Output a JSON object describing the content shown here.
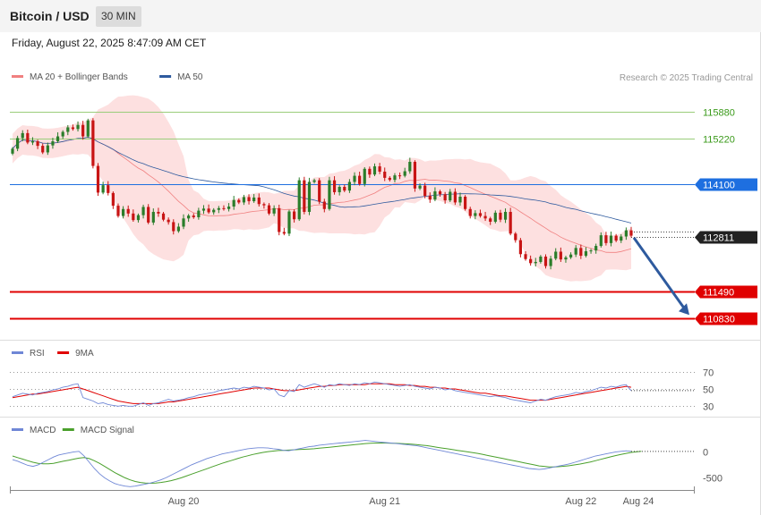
{
  "header": {
    "title": "Bitcoin / USD",
    "timeframe": "30 MIN"
  },
  "datetime": "Friday, August 22, 2025 8:47:09 AM CET",
  "copyright": "Research © 2025 Trading Central",
  "colors": {
    "bollinger": "#f08080",
    "bb_fill": "#fde0e0",
    "ma50": "#2e5a9e",
    "up": "#2a7d2a",
    "down": "#c81414",
    "resistance": "#9acd7a",
    "pivot": "#1e6fe0",
    "support": "#e00000",
    "rsi": "#6f87d6",
    "rsi_ma": "#e00000",
    "macd": "#6f87d6",
    "macd_signal": "#4aa02c",
    "arrow": "#2e5a9e"
  },
  "chart_data": [
    {
      "type": "candlestick",
      "title": "Bitcoin / USD",
      "legend": [
        {
          "name": "MA 20 + Bollinger Bands",
          "color": "#f08080"
        },
        {
          "name": "MA 50",
          "color": "#2e5a9e"
        }
      ],
      "x_ticks": [
        "Aug 20",
        "Aug 21",
        "Aug 22",
        "Aug 24"
      ],
      "ylim": [
        110400,
        117200
      ],
      "levels": [
        {
          "label": "115880",
          "value": 115880,
          "kind": "resistance"
        },
        {
          "label": "115220",
          "value": 115220,
          "kind": "resistance"
        },
        {
          "label": "114100",
          "value": 114100,
          "kind": "pivot"
        },
        {
          "label": "112811",
          "value": 112811,
          "kind": "last"
        },
        {
          "label": "111490",
          "value": 111490,
          "kind": "support"
        },
        {
          "label": "110830",
          "value": 110830,
          "kind": "support"
        }
      ],
      "forecast_arrow": {
        "from": 112800,
        "to": 110830
      },
      "closes": [
        114970,
        115230,
        115350,
        115120,
        115150,
        115040,
        114880,
        115050,
        115150,
        115270,
        115380,
        115490,
        115450,
        115550,
        115270,
        115660,
        114550,
        113900,
        114080,
        113890,
        113580,
        113330,
        113500,
        113390,
        113230,
        113350,
        113550,
        113170,
        113430,
        113390,
        113240,
        113180,
        112960,
        113070,
        113270,
        113340,
        113300,
        113460,
        113510,
        113420,
        113480,
        113520,
        113500,
        113560,
        113720,
        113660,
        113790,
        113690,
        113780,
        113620,
        113590,
        113390,
        113520,
        112940,
        112900,
        113440,
        113250,
        114200,
        113430,
        114160,
        114200,
        113680,
        113500,
        114200,
        113910,
        114040,
        113950,
        114160,
        114310,
        114110,
        114480,
        114340,
        114540,
        114410,
        114260,
        114210,
        114320,
        114310,
        114420,
        114650,
        114000,
        114070,
        113820,
        113730,
        113930,
        113860,
        113710,
        113920,
        113660,
        113800,
        113500,
        113330,
        113400,
        113330,
        113270,
        113190,
        113410,
        113240,
        113430,
        112900,
        112740,
        112400,
        112280,
        112180,
        112210,
        112340,
        112110,
        112290,
        112460,
        112270,
        112320,
        112390,
        112550,
        112360,
        112470,
        112490,
        112600,
        112860,
        112670,
        112850,
        112730,
        112830,
        112980,
        112850
      ]
    },
    {
      "type": "line",
      "legend": [
        {
          "name": "RSI",
          "color": "#6f87d6"
        },
        {
          "name": "9MA",
          "color": "#e00000"
        }
      ],
      "ylim": [
        20,
        80
      ],
      "y_ticks": [
        70,
        50,
        30
      ],
      "rsi": [
        41,
        43,
        45,
        44,
        43,
        45,
        46,
        47,
        49,
        50,
        52,
        53,
        55,
        56,
        40,
        38,
        36,
        33,
        34,
        32,
        31,
        30,
        31,
        30,
        30,
        32,
        34,
        31,
        33,
        34,
        36,
        38,
        36,
        37,
        38,
        40,
        41,
        43,
        44,
        45,
        46,
        48,
        49,
        50,
        51,
        50,
        52,
        51,
        53,
        52,
        51,
        49,
        50,
        43,
        41,
        48,
        47,
        55,
        52,
        54,
        56,
        54,
        52,
        55,
        54,
        56,
        55,
        54,
        56,
        55,
        57,
        56,
        58,
        57,
        56,
        55,
        54,
        53,
        54,
        55,
        53,
        52,
        51,
        50,
        52,
        51,
        49,
        50,
        48,
        47,
        46,
        45,
        44,
        43,
        42,
        41,
        42,
        41,
        40,
        38,
        37,
        36,
        35,
        34,
        36,
        38,
        37,
        39,
        41,
        42,
        43,
        44,
        46,
        45,
        47,
        48,
        50,
        52,
        51,
        53,
        52,
        54,
        55,
        48
      ],
      "rsi_ma": [
        40,
        41,
        42,
        43,
        44,
        44,
        45,
        46,
        47,
        48,
        49,
        50,
        51,
        52,
        50,
        48,
        46,
        44,
        42,
        40,
        38,
        36,
        35,
        34,
        33,
        33,
        33,
        33,
        33,
        33,
        34,
        35,
        35,
        36,
        37,
        38,
        39,
        40,
        41,
        42,
        43,
        44,
        45,
        46,
        47,
        48,
        49,
        50,
        51,
        51,
        51,
        51,
        50,
        49,
        48,
        48,
        48,
        49,
        50,
        51,
        52,
        53,
        53,
        54,
        54,
        55,
        55,
        55,
        55,
        55,
        55,
        56,
        56,
        56,
        56,
        56,
        55,
        55,
        55,
        54,
        54,
        53,
        53,
        52,
        52,
        51,
        51,
        50,
        50,
        49,
        48,
        47,
        46,
        45,
        45,
        44,
        43,
        42,
        42,
        41,
        40,
        39,
        38,
        37,
        37,
        37,
        37,
        38,
        39,
        40,
        41,
        42,
        43,
        44,
        45,
        46,
        47,
        48,
        49,
        50,
        51,
        52,
        53,
        52
      ]
    },
    {
      "type": "line",
      "legend": [
        {
          "name": "MACD",
          "color": "#6f87d6"
        },
        {
          "name": "MACD Signal",
          "color": "#4aa02c"
        }
      ],
      "ylim": [
        -700,
        300
      ],
      "y_ticks": [
        0,
        -500
      ],
      "macd": [
        -150,
        -180,
        -220,
        -260,
        -280,
        -250,
        -200,
        -150,
        -100,
        -60,
        -40,
        -20,
        0,
        10,
        -80,
        -200,
        -320,
        -420,
        -500,
        -560,
        -610,
        -640,
        -660,
        -670,
        -660,
        -640,
        -620,
        -600,
        -570,
        -540,
        -500,
        -450,
        -400,
        -350,
        -300,
        -250,
        -210,
        -170,
        -130,
        -100,
        -70,
        -40,
        -20,
        0,
        20,
        40,
        60,
        70,
        80,
        80,
        75,
        60,
        50,
        30,
        20,
        40,
        60,
        80,
        100,
        110,
        130,
        140,
        150,
        160,
        170,
        180,
        190,
        200,
        210,
        220,
        210,
        200,
        190,
        180,
        170,
        160,
        150,
        140,
        130,
        120,
        100,
        80,
        60,
        40,
        20,
        0,
        -20,
        -40,
        -60,
        -80,
        -100,
        -120,
        -140,
        -160,
        -180,
        -200,
        -220,
        -240,
        -260,
        -280,
        -300,
        -320,
        -330,
        -340,
        -330,
        -310,
        -290,
        -270,
        -250,
        -230,
        -200,
        -170,
        -140,
        -110,
        -80,
        -60,
        -40,
        -20,
        0,
        10,
        20,
        10
      ],
      "macd_signal": [
        -80,
        -110,
        -140,
        -170,
        -200,
        -220,
        -230,
        -230,
        -220,
        -200,
        -180,
        -160,
        -140,
        -120,
        -110,
        -130,
        -170,
        -220,
        -280,
        -340,
        -400,
        -450,
        -500,
        -540,
        -570,
        -590,
        -600,
        -605,
        -600,
        -590,
        -575,
        -555,
        -530,
        -500,
        -465,
        -430,
        -395,
        -360,
        -325,
        -290,
        -255,
        -220,
        -190,
        -160,
        -130,
        -100,
        -75,
        -50,
        -30,
        -10,
        5,
        15,
        25,
        30,
        35,
        40,
        45,
        50,
        55,
        60,
        70,
        80,
        90,
        100,
        110,
        120,
        130,
        140,
        150,
        160,
        165,
        170,
        170,
        170,
        168,
        165,
        160,
        155,
        150,
        140,
        130,
        120,
        105,
        90,
        75,
        60,
        45,
        30,
        15,
        0,
        -15,
        -30,
        -50,
        -70,
        -90,
        -110,
        -130,
        -150,
        -170,
        -190,
        -210,
        -230,
        -250,
        -270,
        -280,
        -290,
        -290,
        -285,
        -275,
        -265,
        -250,
        -235,
        -215,
        -195,
        -170,
        -145,
        -120,
        -95,
        -70,
        -50,
        -30,
        -10,
        0,
        10
      ]
    }
  ]
}
